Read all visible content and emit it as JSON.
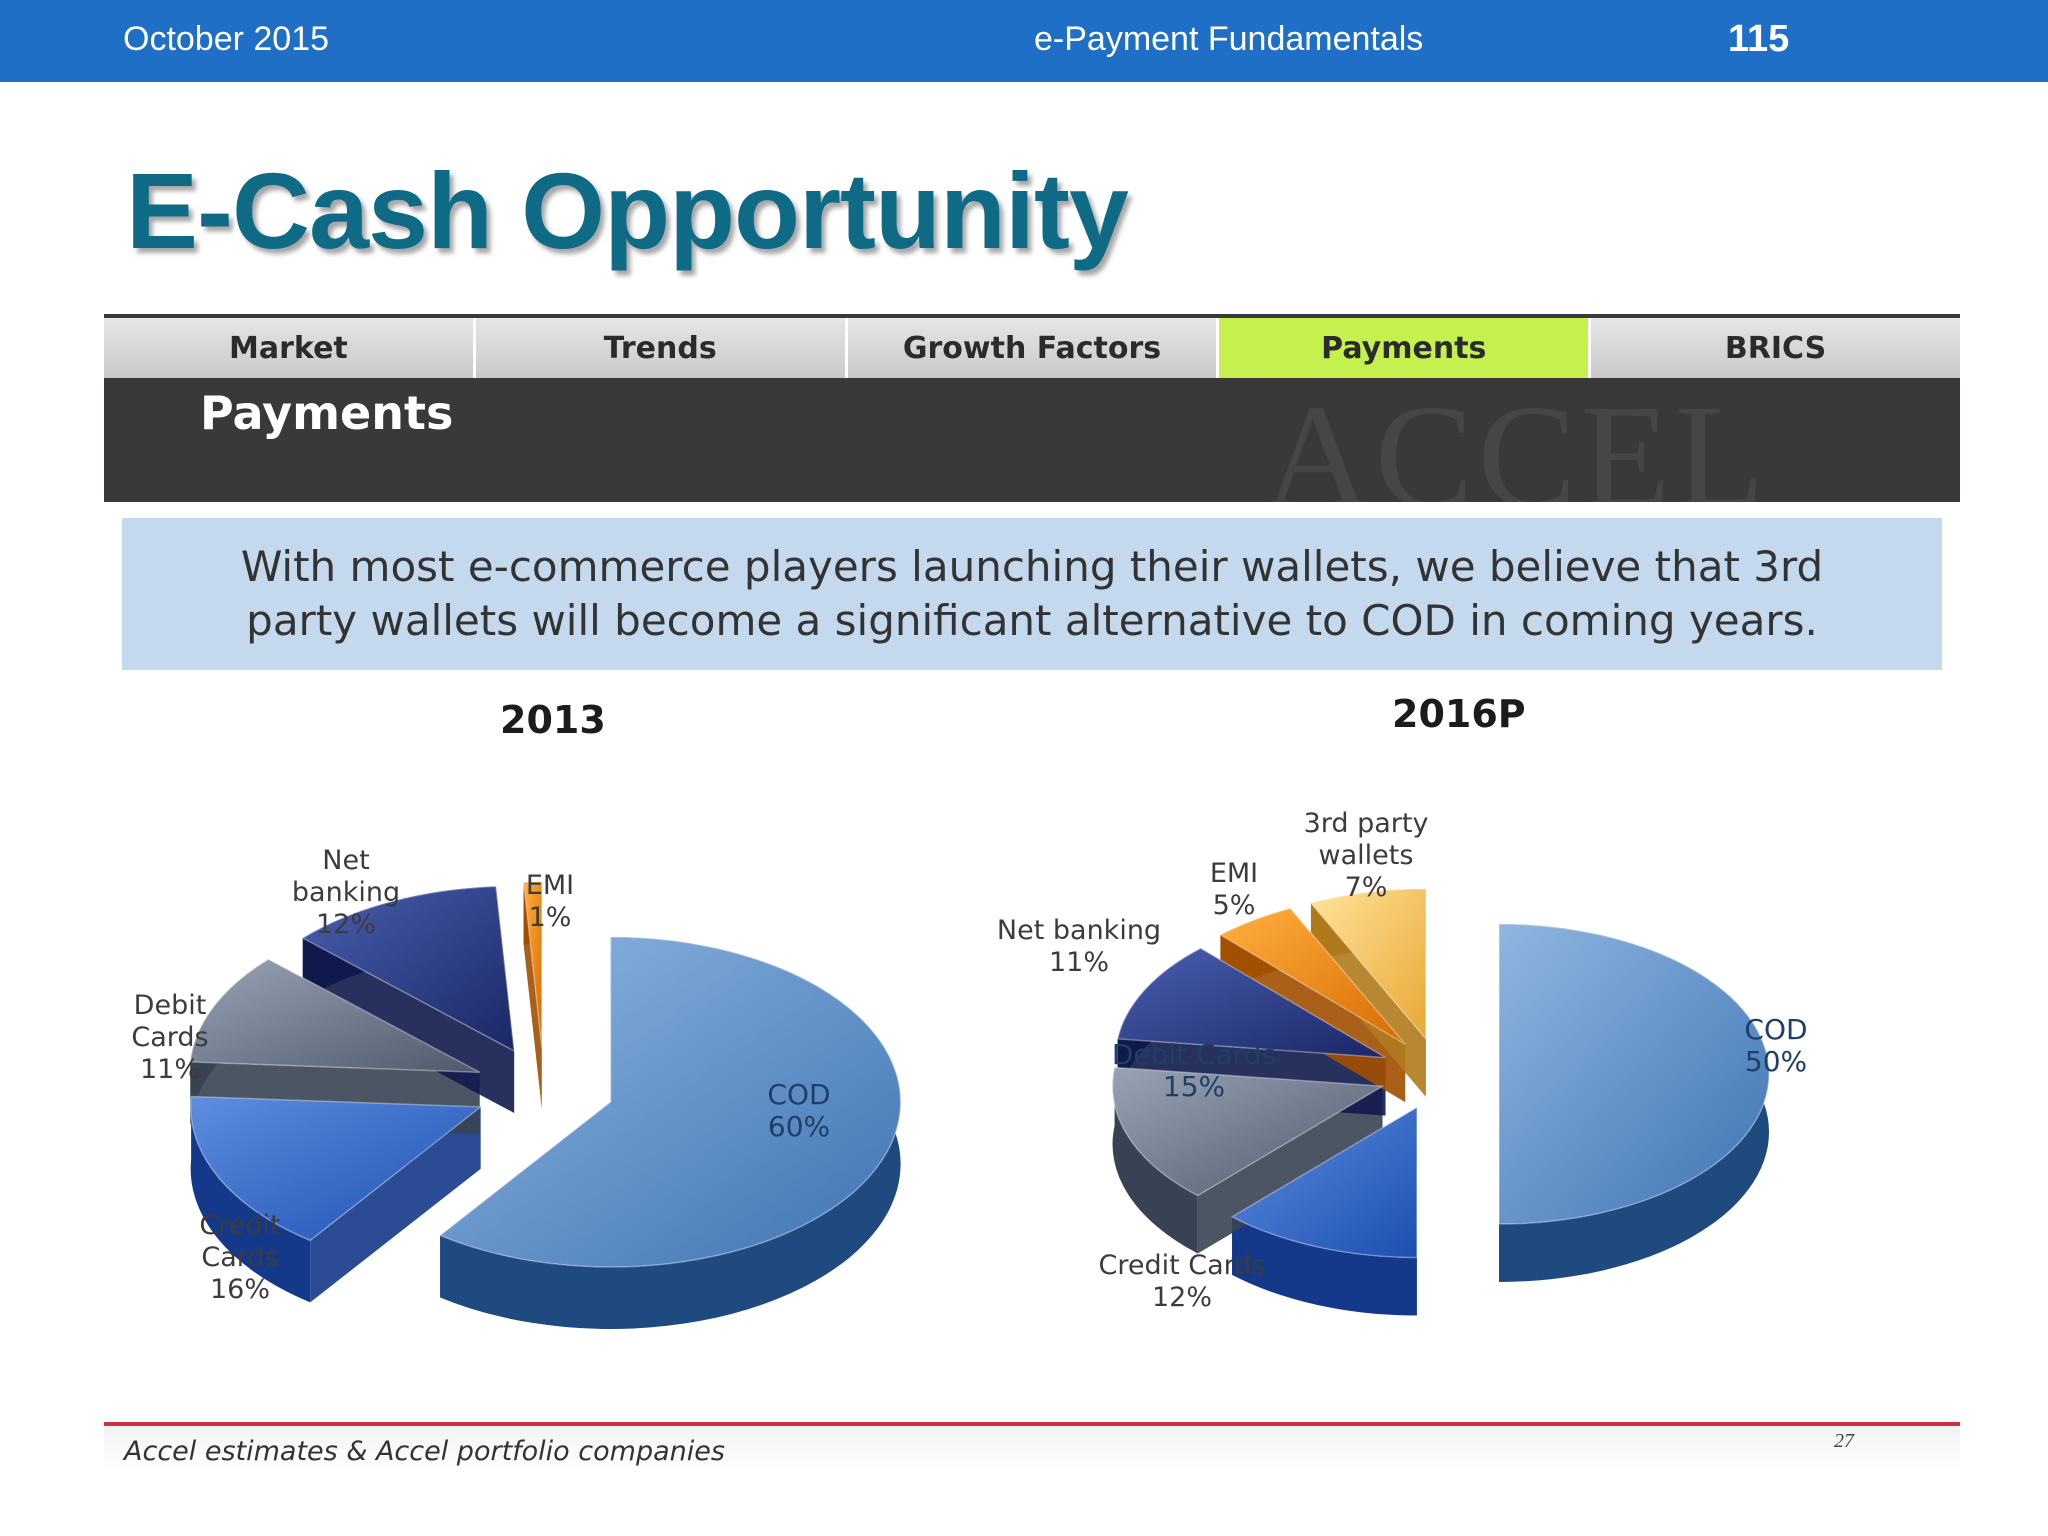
{
  "header": {
    "date": "October 2015",
    "course": "e-Payment Fundamentals",
    "page_number": "115"
  },
  "title": "E-Cash Opportunity",
  "tabs": [
    {
      "label": "Market",
      "active": false
    },
    {
      "label": "Trends",
      "active": false
    },
    {
      "label": "Growth Factors",
      "active": false
    },
    {
      "label": "Payments",
      "active": true
    },
    {
      "label": "BRICS",
      "active": false
    }
  ],
  "banner": {
    "title": "Payments",
    "watermark": "ACCEL"
  },
  "quote": "With most e-commerce players launching their wallets, we believe that 3rd party wallets will become a significant alternative to COD in coming years.",
  "colors": {
    "header_bar": "#1f6fc6",
    "title": "#0f6a86",
    "active_tab": "#c5f14f",
    "banner": "#3a3839",
    "quote_box": "#c5d9ee",
    "footer_rule": "#c8323a",
    "slices": {
      "COD": "#5b8fc9",
      "Credit Cards": "#2c63c4",
      "Debit Cards": "#6a7689",
      "Net banking": "#2c3f8f",
      "EMI": "#f08a10",
      "3rd party wallets": "#f1c15a"
    }
  },
  "chart_data": [
    {
      "type": "pie",
      "title": "2013",
      "slices": [
        {
          "name": "COD",
          "label": "COD",
          "value": 60
        },
        {
          "name": "Credit Cards",
          "label": "Credit Cards",
          "value": 16
        },
        {
          "name": "Debit Cards",
          "label": "Debit Cards",
          "value": 11
        },
        {
          "name": "Net banking",
          "label": "Net banking",
          "value": 12
        },
        {
          "name": "EMI",
          "label": "EMI",
          "value": 1
        }
      ]
    },
    {
      "type": "pie",
      "title": "2016P",
      "slices": [
        {
          "name": "COD",
          "label": "COD",
          "value": 50
        },
        {
          "name": "Credit Cards",
          "label": "Credit Cards",
          "value": 12
        },
        {
          "name": "Debit Cards",
          "label": "Debit Cards",
          "value": 15
        },
        {
          "name": "Net banking",
          "label": "Net banking",
          "value": 11
        },
        {
          "name": "EMI",
          "label": "EMI",
          "value": 5
        },
        {
          "name": "3rd party wallets",
          "label": "3rd party wallets",
          "value": 7
        }
      ]
    }
  ],
  "footer": {
    "source": "Accel estimates & Accel portfolio companies",
    "slide_number": "27"
  }
}
